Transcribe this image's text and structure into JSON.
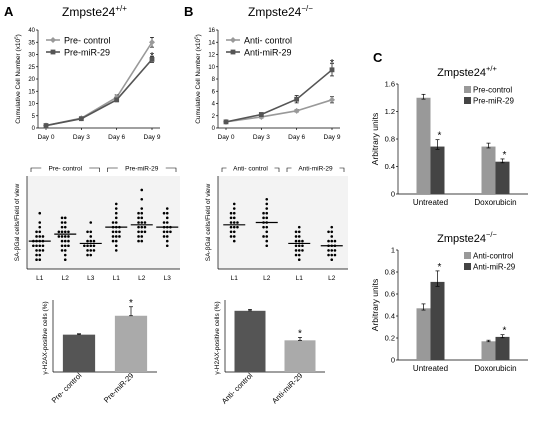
{
  "panels": {
    "A": {
      "letter": "A",
      "title": "Zmpste24+/+",
      "title_base": "Zmpste24",
      "title_sup": "+/+",
      "growth": {
        "type": "line",
        "ylabel": "Cumulative Cell Number (x10",
        "ylabel_sup": "5",
        "ylabel_end": ")",
        "ylim": [
          0,
          40
        ],
        "yticks": [
          "0",
          "5",
          "10",
          "15",
          "20",
          "25",
          "30",
          "35",
          "40"
        ],
        "categories": [
          "Day 0",
          "Day 3",
          "Day 6",
          "Day 9"
        ],
        "series": [
          {
            "name": "Pre- control",
            "values": [
              1.0,
              4.0,
              12.5,
              35.0
            ],
            "err": [
              0.2,
              0.3,
              1.0,
              2.0
            ],
            "color": "#999999",
            "marker": "diamond"
          },
          {
            "name": "Pre-miR-29",
            "values": [
              1.0,
              3.8,
              11.5,
              28.0
            ],
            "err": [
              0.2,
              0.3,
              0.8,
              1.2
            ],
            "color": "#555555",
            "marker": "square"
          }
        ],
        "star": "*"
      },
      "scatter": {
        "type": "scatter",
        "ylabel": "SA-βGal cells/Field of view",
        "ylim": [
          0,
          20
        ],
        "group_labels": [
          "Pre- control",
          "Pre-miR-29"
        ],
        "categories": [
          "L1",
          "L2",
          "L3",
          "L1",
          "L2",
          "L3"
        ],
        "medians": [
          6.0,
          7.5,
          5.5,
          9.0,
          9.5,
          9.0
        ],
        "points": [
          [
            12,
            10,
            9,
            8,
            8,
            7,
            7,
            7,
            6,
            6,
            6,
            6,
            5,
            5,
            5,
            5,
            4,
            4,
            4,
            3,
            3,
            2,
            2
          ],
          [
            11,
            11,
            10,
            10,
            9,
            9,
            8,
            8,
            8,
            8,
            7,
            7,
            7,
            7,
            6,
            6,
            6,
            5,
            5,
            5,
            4,
            4,
            3,
            2
          ],
          [
            10,
            8,
            8,
            7,
            6,
            6,
            6,
            5,
            5,
            5,
            5,
            4,
            4,
            4,
            3,
            3
          ],
          [
            14,
            13,
            12,
            11,
            10,
            10,
            9,
            9,
            9,
            8,
            8,
            8,
            7,
            7,
            7,
            6,
            6,
            5,
            4
          ],
          [
            17,
            15,
            13,
            12,
            12,
            11,
            11,
            10,
            10,
            10,
            9,
            9,
            9,
            8,
            8,
            8,
            7,
            7,
            6,
            6
          ],
          [
            13,
            12,
            12,
            11,
            10,
            10,
            9,
            9,
            9,
            8,
            8,
            8,
            7,
            7,
            6,
            5
          ]
        ]
      },
      "bar": {
        "type": "bar",
        "ylabel": "γ-H2AX-positive cells (%)",
        "ylim": [
          0,
          16
        ],
        "categories": [
          "Pre- control",
          "Pre-miR-29"
        ],
        "values": [
          8.3,
          12.5
        ],
        "err": [
          0.2,
          2.0
        ],
        "colors": [
          "#555555",
          "#aaaaaa"
        ],
        "star": "*"
      }
    },
    "B": {
      "letter": "B",
      "title": "Zmpste24-/-",
      "title_base": "Zmpste24",
      "title_sup": "−/−",
      "growth": {
        "type": "line",
        "ylabel": "Cumulative Cell Number (x10",
        "ylabel_sup": "5",
        "ylabel_end": ")",
        "ylim": [
          0,
          16
        ],
        "yticks": [
          "0",
          "2",
          "4",
          "6",
          "8",
          "10",
          "12",
          "14",
          "16"
        ],
        "categories": [
          "Day 0",
          "Day 3",
          "Day 6",
          "Day 9"
        ],
        "series": [
          {
            "name": "Anti- control",
            "values": [
              1.0,
              1.8,
              2.8,
              4.6
            ],
            "err": [
              0.1,
              0.2,
              0.2,
              0.5
            ],
            "color": "#999999",
            "marker": "diamond"
          },
          {
            "name": "Anti-miR-29",
            "values": [
              1.0,
              2.2,
              4.7,
              9.5
            ],
            "err": [
              0.1,
              0.3,
              0.6,
              1.0
            ],
            "color": "#555555",
            "marker": "square"
          }
        ],
        "star": "*"
      },
      "scatter": {
        "type": "scatter",
        "ylabel": "SA-βGal cells/Field of view",
        "ylim": [
          0,
          20
        ],
        "group_labels": [
          "Anti- control",
          "Anti-miR-29"
        ],
        "categories": [
          "L1",
          "L2",
          "L1",
          "L2"
        ],
        "medians": [
          9.5,
          10.0,
          5.5,
          5.0
        ],
        "points": [
          [
            14,
            13,
            12,
            12,
            11,
            11,
            10,
            10,
            10,
            9,
            9,
            9,
            8,
            8,
            7,
            7,
            6
          ],
          [
            15,
            14,
            13,
            12,
            12,
            11,
            11,
            10,
            10,
            9,
            9,
            8,
            7,
            7,
            6,
            5
          ],
          [
            9,
            8,
            8,
            7,
            7,
            6,
            6,
            6,
            5,
            5,
            5,
            4,
            4,
            4,
            3,
            3,
            2
          ],
          [
            9,
            8,
            8,
            7,
            6,
            6,
            6,
            5,
            5,
            5,
            4,
            4,
            4,
            3,
            3,
            3,
            2
          ]
        ]
      },
      "bar": {
        "type": "bar",
        "ylabel": "γ-H2AX-positive cells (%)",
        "ylim": [
          0,
          50
        ],
        "categories": [
          "Anti- control",
          "Anti-miR-29"
        ],
        "values": [
          42.5,
          22.0
        ],
        "err": [
          1.0,
          2.0
        ],
        "colors": [
          "#555555",
          "#aaaaaa"
        ],
        "star": "*"
      }
    },
    "C": {
      "letter": "C",
      "charts": [
        {
          "type": "bar",
          "title_base": "Zmpste24",
          "title_sup": "+/+",
          "ylabel": "Arbitrary units",
          "ylim": [
            0,
            1.6
          ],
          "yticks": [
            "0",
            "0.4",
            "0.8",
            "1.2",
            "1.6"
          ],
          "categories": [
            "Untreated",
            "Doxorubicin"
          ],
          "series": [
            {
              "name": "Pre-control",
              "values": [
                1.4,
                0.69
              ],
              "err": [
                0.05,
                0.05
              ],
              "color": "#999999"
            },
            {
              "name": "Pre-miR-29",
              "values": [
                0.69,
                0.47
              ],
              "err": [
                0.1,
                0.04
              ],
              "color": "#444444"
            }
          ],
          "star": "*"
        },
        {
          "type": "bar",
          "title_base": "Zmpste24",
          "title_sup": "−/−",
          "ylabel": "Arbitrary units",
          "ylim": [
            0,
            1
          ],
          "yticks": [
            "0",
            "0.2",
            "0.4",
            "0.6",
            "0.8",
            "1"
          ],
          "categories": [
            "Untreated",
            "Doxorubicin"
          ],
          "series": [
            {
              "name": "Anti-control",
              "values": [
                0.47,
                0.17
              ],
              "err": [
                0.04,
                0.01
              ],
              "color": "#999999"
            },
            {
              "name": "Anti-miR-29",
              "values": [
                0.71,
                0.21
              ],
              "err": [
                0.1,
                0.02
              ],
              "color": "#444444"
            }
          ],
          "star": "*"
        }
      ]
    }
  }
}
